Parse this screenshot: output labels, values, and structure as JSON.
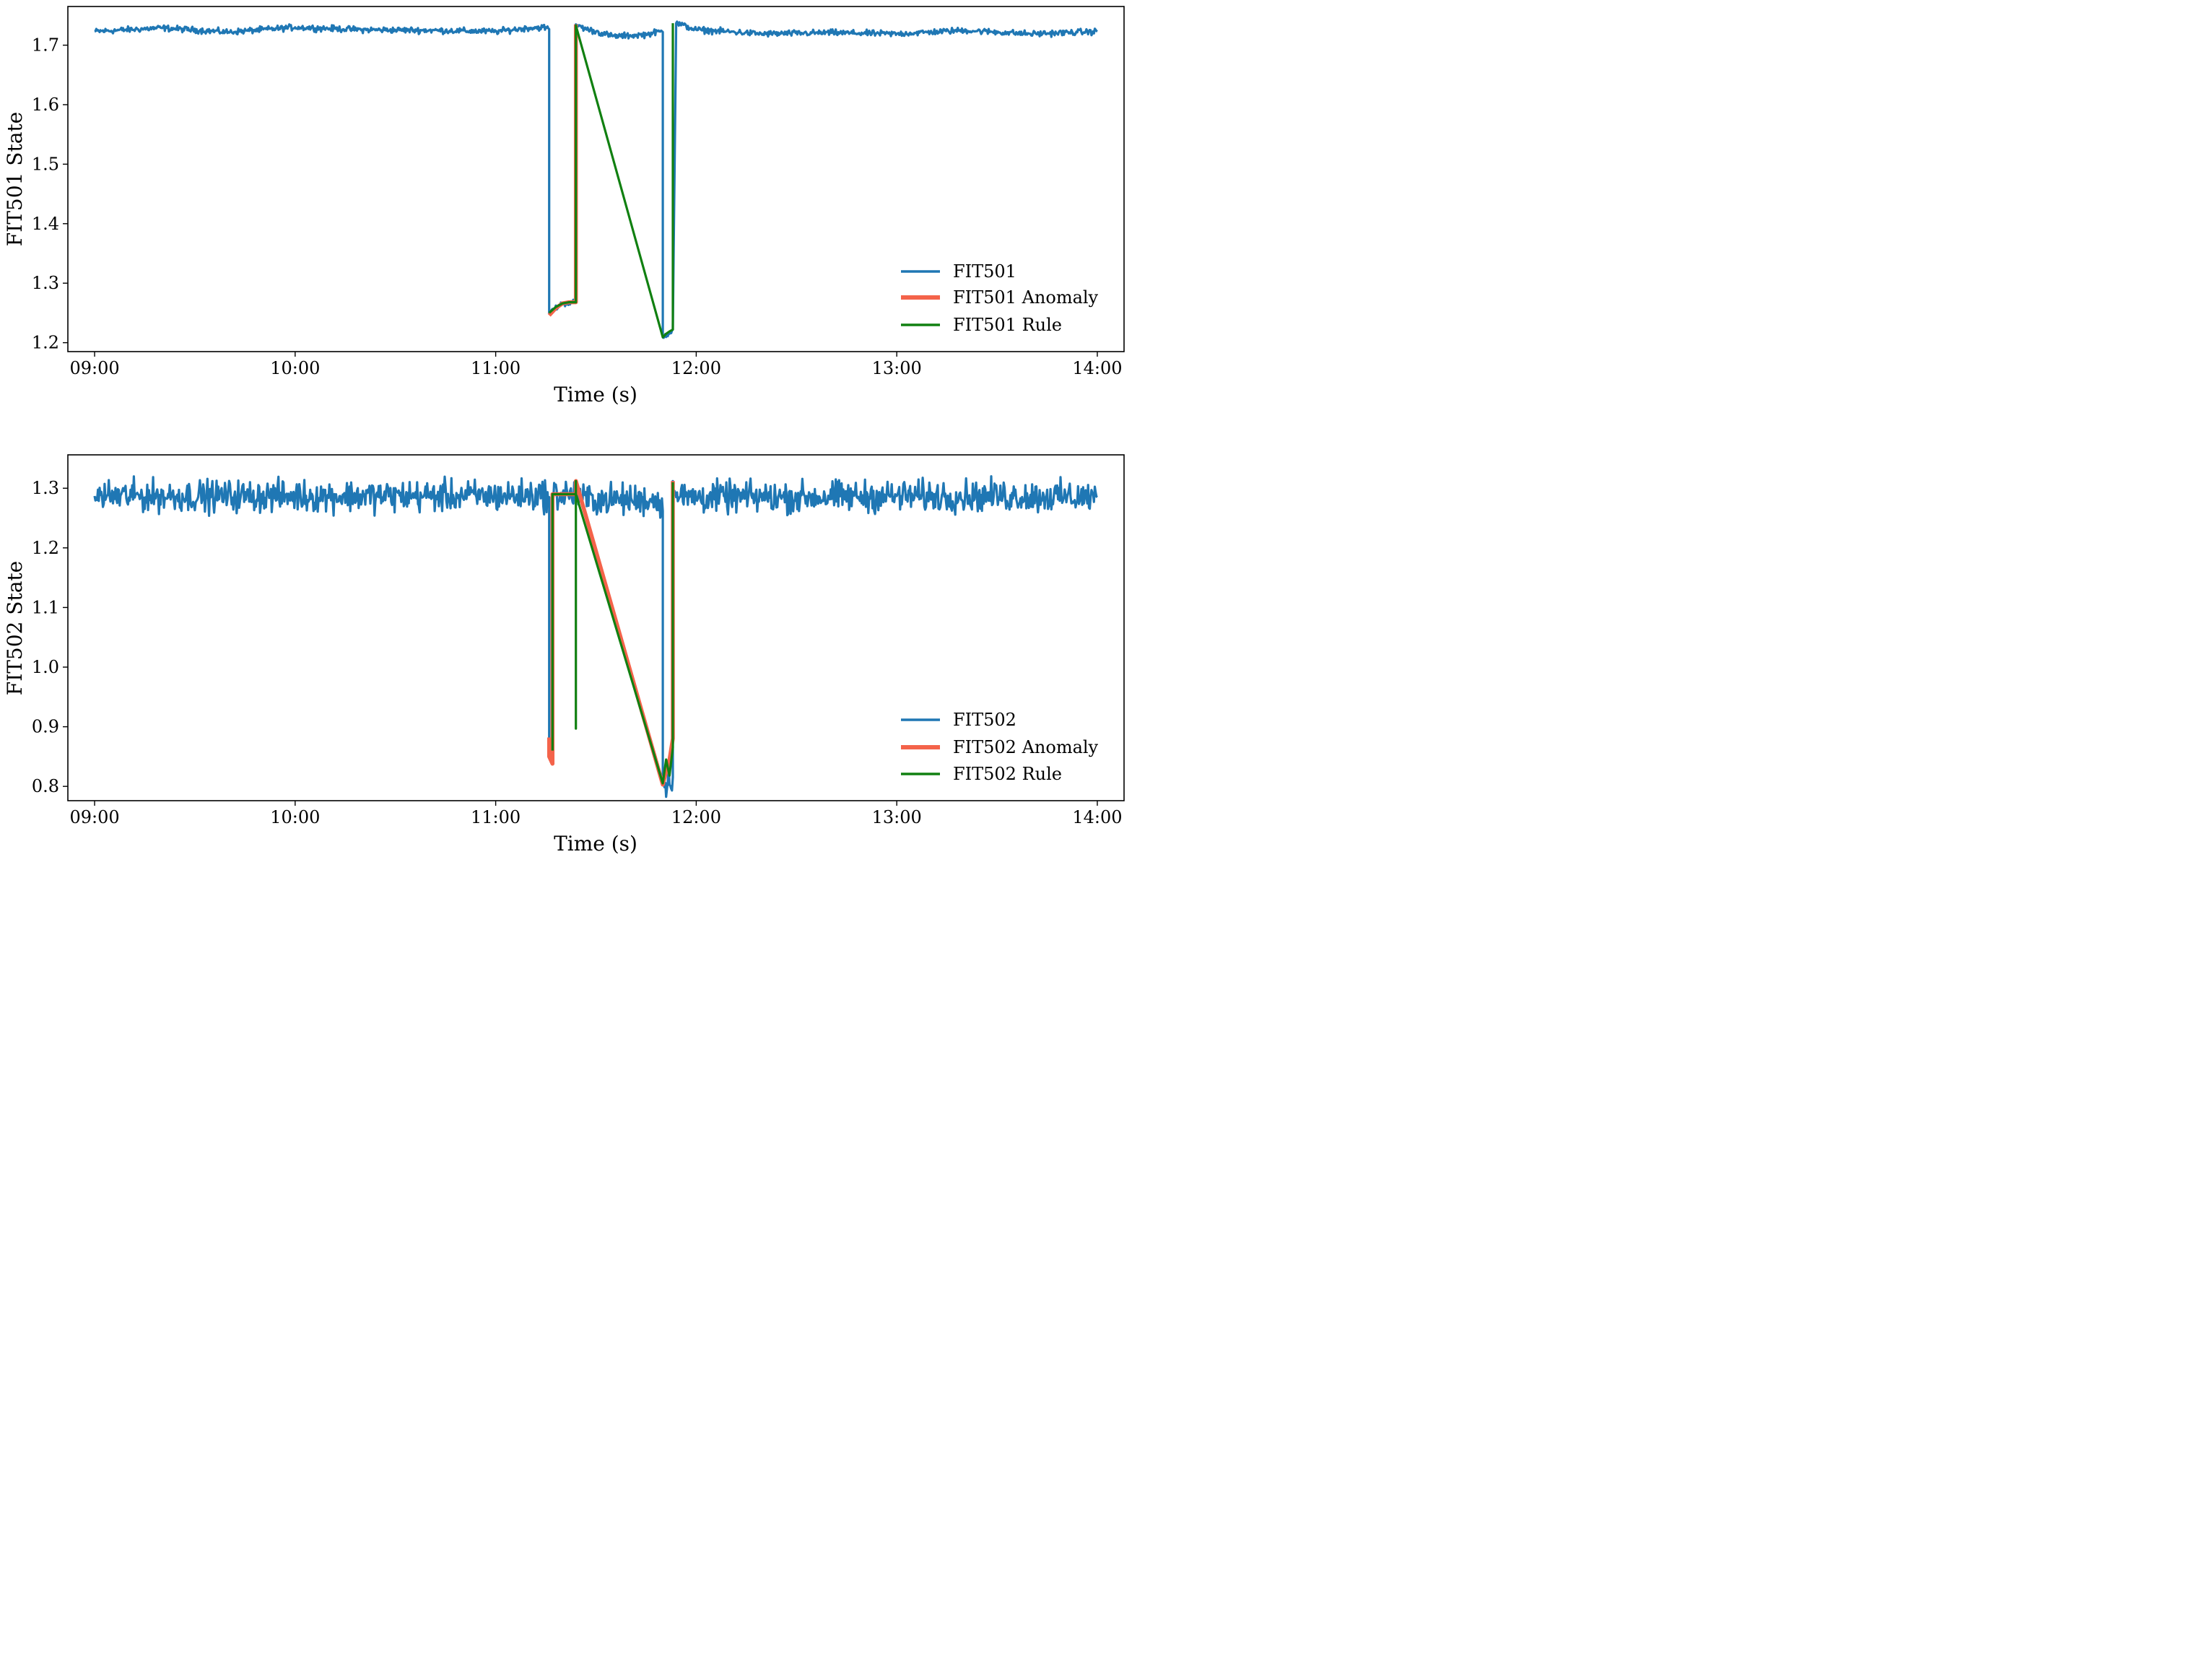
{
  "figure": {
    "colors": {
      "signal": "#1f77b4",
      "anomaly": "#f4634a",
      "rule": "#118011"
    }
  },
  "chart_data": [
    {
      "type": "line",
      "xlabel": "Time (s)",
      "ylabel": "FIT501 State",
      "xlim": [
        "08:52",
        "14:08"
      ],
      "ylim": [
        1.185,
        1.765
      ],
      "xticks": [
        "09:00",
        "10:00",
        "11:00",
        "12:00",
        "13:00",
        "14:00"
      ],
      "yticks": [
        "1.2",
        "1.3",
        "1.4",
        "1.5",
        "1.6",
        "1.7"
      ],
      "legend_position": "lower-right",
      "series": [
        {
          "name": "FIT501",
          "color": "#1f77b4",
          "x": [
            "09:00",
            "09:20",
            "09:40",
            "10:00",
            "10:20",
            "10:40",
            "11:00",
            "11:10",
            "11:15",
            "11:16",
            "11:16",
            "11:20",
            "11:24",
            "11:24",
            "11:27",
            "11:30",
            "11:35",
            "11:40",
            "11:45",
            "11:49",
            "11:50",
            "11:50",
            "11:53",
            "11:53",
            "11:54",
            "12:00",
            "12:20",
            "12:40",
            "13:00",
            "13:20",
            "13:40",
            "14:00"
          ],
          "y": [
            1.723,
            1.729,
            1.722,
            1.73,
            1.726,
            1.725,
            1.723,
            1.729,
            1.73,
            1.727,
            1.25,
            1.266,
            1.268,
            1.735,
            1.727,
            1.723,
            1.715,
            1.716,
            1.718,
            1.723,
            1.722,
            1.209,
            1.222,
            1.225,
            1.737,
            1.726,
            1.719,
            1.721,
            1.719,
            1.725,
            1.719,
            1.723
          ],
          "noise": 0.0025
        },
        {
          "name": "FIT501 Anomaly",
          "color": "#f4634a",
          "x": [
            "11:16",
            "11:18",
            "11:20",
            "11:22",
            "11:24",
            "11:24"
          ],
          "y": [
            1.246,
            1.258,
            1.266,
            1.268,
            1.268,
            1.735
          ],
          "noise": 0
        },
        {
          "name": "FIT501 Rule",
          "color": "#118011",
          "x": [
            "11:16",
            "11:18",
            "11:20",
            "11:22",
            "11:24",
            "11:24",
            "11:50",
            "11:51",
            "11:52",
            "11:53",
            "11:53"
          ],
          "y": [
            1.25,
            1.26,
            1.266,
            1.268,
            1.268,
            1.733,
            1.209,
            1.215,
            1.219,
            1.222,
            1.737
          ],
          "noise": 0
        }
      ]
    },
    {
      "type": "line",
      "xlabel": "Time (s)",
      "ylabel": "FIT502 State",
      "xlim": [
        "08:52",
        "14:08"
      ],
      "ylim": [
        0.776,
        1.356
      ],
      "xticks": [
        "09:00",
        "10:00",
        "11:00",
        "12:00",
        "13:00",
        "14:00"
      ],
      "yticks": [
        "0.8",
        "0.9",
        "1.0",
        "1.1",
        "1.2",
        "1.3"
      ],
      "legend_position": "lower-right",
      "series": [
        {
          "name": "FIT502",
          "color": "#1f77b4",
          "x": [
            "09:00",
            "10:00",
            "11:00",
            "11:15",
            "11:16",
            "11:16",
            "11:17",
            "11:17",
            "11:24",
            "11:24",
            "11:25",
            "11:49",
            "11:50",
            "11:50",
            "11:53",
            "11:53",
            "11:54",
            "12:30",
            "13:00",
            "13:30",
            "14:00"
          ],
          "y": [
            1.287,
            1.287,
            1.287,
            1.289,
            1.285,
            0.86,
            0.845,
            1.29,
            1.29,
            1.312,
            1.282,
            1.28,
            1.262,
            0.803,
            0.815,
            1.312,
            1.285,
            1.285,
            1.287,
            1.287,
            1.285
          ],
          "noise": 0.013
        },
        {
          "name": "FIT502 Anomaly",
          "color": "#f4634a",
          "x": [
            "11:16",
            "11:16",
            "11:17",
            "11:17",
            "11:24",
            "11:24",
            "11:50",
            "11:51",
            "11:52",
            "11:53",
            "11:53"
          ],
          "y": [
            0.882,
            0.85,
            0.838,
            1.29,
            1.29,
            1.312,
            0.803,
            0.825,
            0.845,
            0.88,
            1.312
          ],
          "noise": 0
        },
        {
          "name": "FIT502 Rule",
          "color": "#118011",
          "x": [
            "11:17",
            "11:17",
            "11:24",
            "11:24",
            "11:24",
            "11:24",
            "11:50",
            "11:51",
            "11:52",
            "11:53",
            "11:53"
          ],
          "y": [
            0.86,
            1.29,
            1.29,
            0.897,
            1.312,
            1.29,
            0.805,
            0.845,
            0.818,
            0.865,
            1.31
          ],
          "noise": 0
        }
      ]
    }
  ]
}
